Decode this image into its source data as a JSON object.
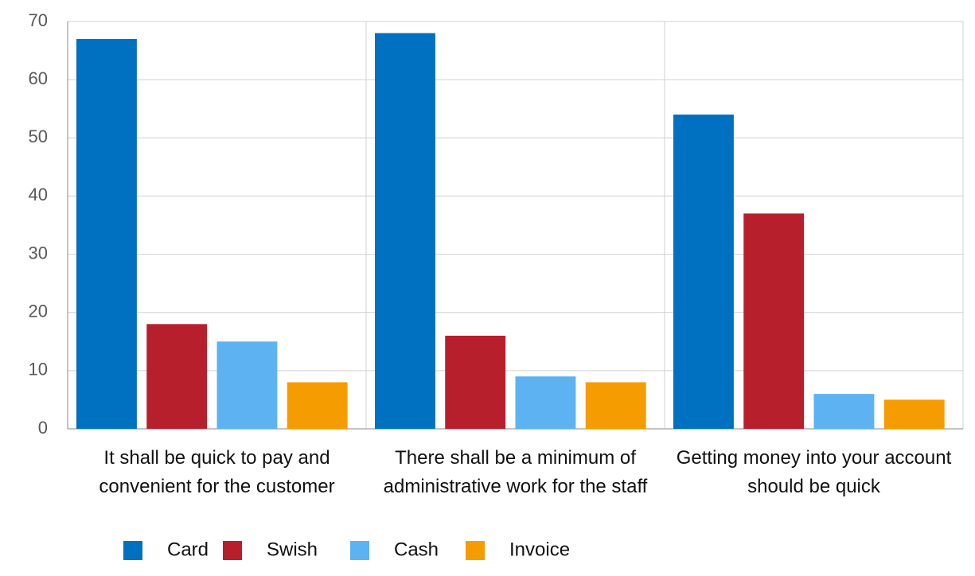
{
  "chart_data": {
    "type": "bar",
    "categories": [
      "It shall be quick to pay and convenient for the customer",
      "There shall be a minimum of administrative work for the staff",
      "Getting money into your account should be quick"
    ],
    "series": [
      {
        "name": "Card",
        "color": "#0070c0",
        "values": [
          67,
          68,
          54
        ]
      },
      {
        "name": "Swish",
        "color": "#b81f2d",
        "values": [
          18,
          16,
          37
        ]
      },
      {
        "name": "Cash",
        "color": "#5db3f2",
        "values": [
          15,
          9,
          6
        ]
      },
      {
        "name": "Invoice",
        "color": "#f59c00",
        "values": [
          8,
          8,
          5
        ]
      }
    ],
    "ylim": [
      0,
      70
    ],
    "yticks": [
      0,
      10,
      20,
      30,
      40,
      50,
      60,
      70
    ],
    "grid": true,
    "legend": "bottom"
  }
}
